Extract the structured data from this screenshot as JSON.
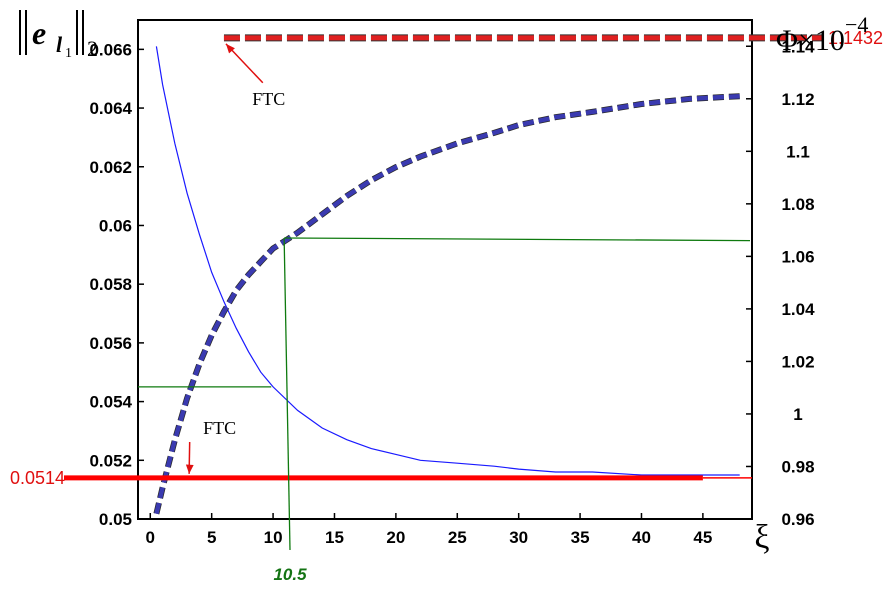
{
  "chart_data": {
    "type": "line",
    "x_label_symbol": "ξ",
    "left_axis_label": {
      "base": "e",
      "sub": "l",
      "subsub": "1",
      "norm_sub": "2"
    },
    "right_axis_label": {
      "main": "Φ×10",
      "exp": "−4"
    },
    "xlim": [
      -1,
      49
    ],
    "ylim_left": [
      0.05,
      0.067
    ],
    "ylim_right": [
      0.96,
      1.15
    ],
    "x_ticks": [
      "0",
      "5",
      "10",
      "15",
      "20",
      "25",
      "30",
      "35",
      "40",
      "45"
    ],
    "x_tick_values": [
      0,
      5,
      10,
      15,
      20,
      25,
      30,
      35,
      40,
      45
    ],
    "left_ticks": [
      "0.05",
      "0.052",
      "0.054",
      "0.056",
      "0.058",
      "0.06",
      "0.062",
      "0.064",
      "0.066"
    ],
    "left_tick_values": [
      0.05,
      0.052,
      0.054,
      0.056,
      0.058,
      0.06,
      0.062,
      0.064,
      0.066
    ],
    "right_ticks": [
      "0.96",
      "0.98",
      "1",
      "1.02",
      "1.04",
      "1.06",
      "1.08",
      "1.1",
      "1.12",
      "1.14"
    ],
    "right_tick_values": [
      0.96,
      0.98,
      1.0,
      1.02,
      1.04,
      1.06,
      1.08,
      1.1,
      1.12,
      1.14
    ],
    "series": [
      {
        "axis": "left",
        "color": "#1a1aff",
        "style": "solid-thin",
        "x": [
          0.5,
          1,
          2,
          3,
          4,
          5,
          6,
          7,
          8,
          9,
          10,
          12,
          14,
          16,
          18,
          20,
          22,
          25,
          28,
          30,
          33,
          36,
          40,
          44,
          48
        ],
        "y": [
          0.0661,
          0.0648,
          0.0628,
          0.0611,
          0.0597,
          0.0584,
          0.0574,
          0.0565,
          0.0557,
          0.055,
          0.0545,
          0.0537,
          0.0531,
          0.0527,
          0.0524,
          0.0522,
          0.052,
          0.0519,
          0.0518,
          0.0517,
          0.0516,
          0.0516,
          0.0515,
          0.0515,
          0.0515
        ]
      },
      {
        "axis": "right",
        "color": "#3a3ab0",
        "style": "dashed-thick",
        "x": [
          0.5,
          1,
          2,
          3,
          4,
          5,
          6,
          7,
          8,
          9,
          10,
          11,
          12,
          14,
          16,
          18,
          20,
          22,
          25,
          28,
          30,
          33,
          36,
          40,
          44,
          48
        ],
        "y": [
          0.962,
          0.972,
          0.99,
          1.006,
          1.019,
          1.03,
          1.039,
          1.047,
          1.053,
          1.058,
          1.063,
          1.066,
          1.069,
          1.076,
          1.083,
          1.089,
          1.094,
          1.098,
          1.103,
          1.107,
          1.11,
          1.113,
          1.115,
          1.118,
          1.12,
          1.121
        ]
      }
    ],
    "reference_lines": [
      {
        "axis": "left",
        "y": 0.0514,
        "x_start": -1,
        "x_end": 45,
        "label": "0.0514",
        "color": "#ff0000"
      },
      {
        "axis": "right",
        "y": 1.1432,
        "x_start": 6,
        "x_end": 49,
        "label": "1.1432",
        "color": "#e02020"
      }
    ],
    "marker": {
      "x_value": 10.5,
      "label": "10.5",
      "color": "#0f7a0f"
    },
    "annotations": [
      {
        "text": "FTC",
        "x": 9,
        "axis": "right",
        "y": 1.12,
        "arrow_to_x": 6,
        "arrow_to_y": 1.1432
      },
      {
        "text": "FTC",
        "x": 5,
        "axis": "left",
        "y": 0.0531,
        "arrow_to_x": 3,
        "arrow_to_y": 0.0514
      }
    ]
  }
}
